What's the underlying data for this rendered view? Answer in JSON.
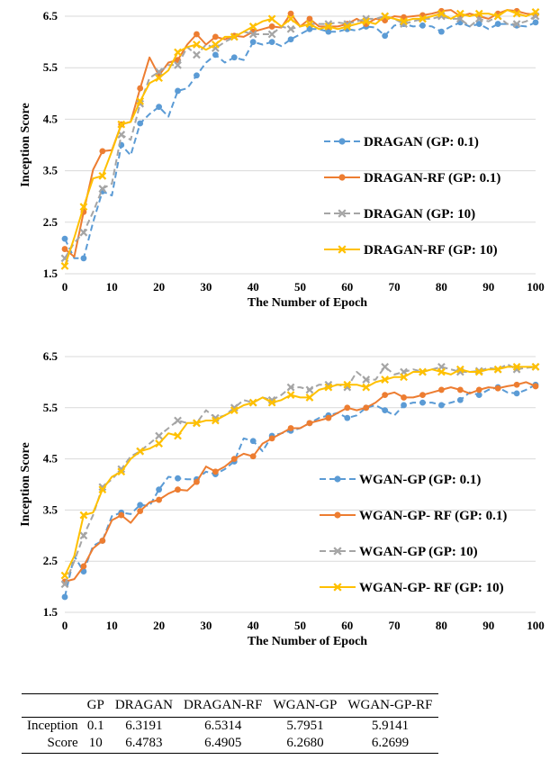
{
  "colors": {
    "blue": "#5b9bd5",
    "orange": "#ed7d31",
    "gray": "#a5a5a5",
    "yellow": "#ffc000",
    "grid": "#d9d9d9"
  },
  "chart_data": [
    {
      "type": "line",
      "title": "",
      "xlabel": "The Number of Epoch",
      "ylabel": "Inception Score",
      "xlim": [
        0,
        100
      ],
      "ylim": [
        1.5,
        6.5
      ],
      "xticks": [
        0,
        10,
        20,
        30,
        40,
        50,
        60,
        70,
        80,
        90,
        100
      ],
      "yticks": [
        1.5,
        2.5,
        3.5,
        4.5,
        5.5,
        6.5
      ],
      "grid": "horizontal",
      "legend_position": "right-middle",
      "series": [
        {
          "name": "DRAGAN (GP: 0.1)",
          "color": "#5b9bd5",
          "dash": "dashed",
          "marker": "circle",
          "x": [
            0,
            2,
            4,
            6,
            8,
            10,
            12,
            14,
            16,
            18,
            20,
            22,
            24,
            26,
            28,
            30,
            32,
            34,
            36,
            38,
            40,
            42,
            44,
            46,
            48,
            50,
            52,
            54,
            56,
            58,
            60,
            62,
            64,
            66,
            68,
            70,
            72,
            74,
            76,
            78,
            80,
            82,
            84,
            86,
            88,
            90,
            92,
            94,
            96,
            98,
            100
          ],
          "y": [
            2.18,
            1.8,
            1.8,
            2.5,
            3.1,
            3.02,
            4.0,
            3.8,
            4.42,
            4.6,
            4.74,
            4.55,
            5.05,
            5.1,
            5.35,
            5.6,
            5.75,
            5.6,
            5.7,
            5.65,
            6.0,
            5.95,
            6.0,
            5.92,
            6.05,
            6.15,
            6.25,
            6.25,
            6.2,
            6.2,
            6.25,
            6.22,
            6.3,
            6.28,
            6.12,
            6.32,
            6.35,
            6.3,
            6.32,
            6.3,
            6.2,
            6.3,
            6.38,
            6.3,
            6.35,
            6.25,
            6.35,
            6.35,
            6.32,
            6.3,
            6.38
          ]
        },
        {
          "name": "DRAGAN-RF (GP: 0.1)",
          "color": "#ed7d31",
          "dash": "solid",
          "marker": "circle",
          "x": [
            0,
            2,
            4,
            6,
            8,
            10,
            12,
            14,
            16,
            18,
            20,
            22,
            24,
            26,
            28,
            30,
            32,
            34,
            36,
            38,
            40,
            42,
            44,
            46,
            48,
            50,
            52,
            54,
            56,
            58,
            60,
            62,
            64,
            66,
            68,
            70,
            72,
            74,
            76,
            78,
            80,
            82,
            84,
            86,
            88,
            90,
            92,
            94,
            96,
            98,
            100
          ],
          "y": [
            1.98,
            1.83,
            2.7,
            3.52,
            3.88,
            3.9,
            4.4,
            4.45,
            5.1,
            5.7,
            5.35,
            5.6,
            5.65,
            5.95,
            6.15,
            5.95,
            6.1,
            6.05,
            6.12,
            6.1,
            6.2,
            6.25,
            6.3,
            6.28,
            6.55,
            6.3,
            6.45,
            6.3,
            6.3,
            6.3,
            6.35,
            6.45,
            6.35,
            6.45,
            6.42,
            6.5,
            6.48,
            6.5,
            6.52,
            6.55,
            6.6,
            6.62,
            6.5,
            6.55,
            6.5,
            6.45,
            6.55,
            6.62,
            6.6,
            6.55,
            6.53
          ]
        },
        {
          "name": "DRAGAN (GP: 10)",
          "color": "#a5a5a5",
          "dash": "dashed",
          "marker": "cross",
          "x": [
            0,
            2,
            4,
            6,
            8,
            10,
            12,
            14,
            16,
            18,
            20,
            22,
            24,
            26,
            28,
            30,
            32,
            34,
            36,
            38,
            40,
            42,
            44,
            46,
            48,
            50,
            52,
            54,
            56,
            58,
            60,
            62,
            64,
            66,
            68,
            70,
            72,
            74,
            76,
            78,
            80,
            82,
            84,
            86,
            88,
            90,
            92,
            94,
            96,
            98,
            100
          ],
          "y": [
            1.8,
            2.1,
            2.3,
            2.7,
            3.15,
            3.25,
            4.2,
            4.1,
            4.8,
            5.3,
            5.42,
            5.55,
            5.55,
            5.9,
            5.75,
            5.95,
            5.88,
            6.0,
            6.1,
            6.2,
            6.15,
            6.15,
            6.15,
            6.3,
            6.25,
            6.3,
            6.35,
            6.35,
            6.35,
            6.38,
            6.35,
            6.4,
            6.45,
            6.45,
            6.5,
            6.45,
            6.35,
            6.4,
            6.45,
            6.45,
            6.5,
            6.45,
            6.45,
            6.3,
            6.45,
            6.4,
            6.5,
            6.35,
            6.35,
            6.4,
            6.5
          ]
        },
        {
          "name": "DRAGAN-RF (GP: 10)",
          "color": "#ffc000",
          "dash": "solid",
          "marker": "cross",
          "x": [
            0,
            2,
            4,
            6,
            8,
            10,
            12,
            14,
            16,
            18,
            20,
            22,
            24,
            26,
            28,
            30,
            32,
            34,
            36,
            38,
            40,
            42,
            44,
            46,
            48,
            50,
            52,
            54,
            56,
            58,
            60,
            62,
            64,
            66,
            68,
            70,
            72,
            74,
            76,
            78,
            80,
            82,
            84,
            86,
            88,
            90,
            92,
            94,
            96,
            98,
            100
          ],
          "y": [
            1.65,
            2.2,
            2.8,
            3.35,
            3.4,
            3.88,
            4.4,
            4.45,
            4.85,
            5.2,
            5.3,
            5.45,
            5.8,
            5.9,
            5.95,
            5.85,
            5.95,
            6.1,
            6.1,
            6.2,
            6.3,
            6.4,
            6.45,
            6.3,
            6.45,
            6.3,
            6.35,
            6.25,
            6.3,
            6.25,
            6.3,
            6.35,
            6.4,
            6.35,
            6.5,
            6.45,
            6.4,
            6.45,
            6.45,
            6.5,
            6.55,
            6.45,
            6.55,
            6.5,
            6.55,
            6.55,
            6.5,
            6.62,
            6.55,
            6.5,
            6.58
          ]
        }
      ]
    },
    {
      "type": "line",
      "title": "",
      "xlabel": "The Number of Epoch",
      "ylabel": "Inception Score",
      "xlim": [
        0,
        100
      ],
      "ylim": [
        1.5,
        6.5
      ],
      "xticks": [
        0,
        10,
        20,
        30,
        40,
        50,
        60,
        70,
        80,
        90,
        100
      ],
      "yticks": [
        1.5,
        2.5,
        3.5,
        4.5,
        5.5,
        6.5
      ],
      "grid": "horizontal",
      "legend_position": "right-middle",
      "series": [
        {
          "name": "WGAN-GP (GP: 0.1)",
          "color": "#5b9bd5",
          "dash": "dashed",
          "marker": "circle",
          "x": [
            0,
            2,
            4,
            6,
            8,
            10,
            12,
            14,
            16,
            18,
            20,
            22,
            24,
            26,
            28,
            30,
            32,
            34,
            36,
            38,
            40,
            42,
            44,
            46,
            48,
            50,
            52,
            54,
            56,
            58,
            60,
            62,
            64,
            66,
            68,
            70,
            72,
            74,
            76,
            78,
            80,
            82,
            84,
            86,
            88,
            90,
            92,
            94,
            96,
            98,
            100
          ],
          "y": [
            1.8,
            2.6,
            2.3,
            2.8,
            2.9,
            3.38,
            3.45,
            3.42,
            3.6,
            3.58,
            3.9,
            4.15,
            4.12,
            4.1,
            4.1,
            4.25,
            4.2,
            4.3,
            4.45,
            4.9,
            4.85,
            4.65,
            4.95,
            5.0,
            5.05,
            5.1,
            5.2,
            5.3,
            5.35,
            5.4,
            5.3,
            5.35,
            5.5,
            5.55,
            5.45,
            5.35,
            5.55,
            5.6,
            5.6,
            5.6,
            5.55,
            5.6,
            5.65,
            5.8,
            5.75,
            5.85,
            5.9,
            5.8,
            5.78,
            5.85,
            5.95
          ]
        },
        {
          "name": "WGAN-GP- RF (GP: 0.1)",
          "color": "#ed7d31",
          "dash": "solid",
          "marker": "circle",
          "x": [
            0,
            2,
            4,
            6,
            8,
            10,
            12,
            14,
            16,
            18,
            20,
            22,
            24,
            26,
            28,
            30,
            32,
            34,
            36,
            38,
            40,
            42,
            44,
            46,
            48,
            50,
            52,
            54,
            56,
            58,
            60,
            62,
            64,
            66,
            68,
            70,
            72,
            74,
            76,
            78,
            80,
            82,
            84,
            86,
            88,
            90,
            92,
            94,
            96,
            98,
            100
          ],
          "y": [
            2.1,
            2.15,
            2.4,
            2.75,
            2.9,
            3.3,
            3.4,
            3.25,
            3.48,
            3.65,
            3.7,
            3.82,
            3.9,
            3.88,
            4.05,
            4.35,
            4.25,
            4.35,
            4.5,
            4.6,
            4.55,
            4.8,
            4.9,
            5.0,
            5.1,
            5.1,
            5.2,
            5.25,
            5.3,
            5.4,
            5.5,
            5.45,
            5.5,
            5.6,
            5.75,
            5.8,
            5.7,
            5.7,
            5.75,
            5.8,
            5.85,
            5.9,
            5.85,
            5.78,
            5.85,
            5.9,
            5.88,
            5.92,
            5.95,
            6.0,
            5.92
          ]
        },
        {
          "name": "WGAN-GP (GP: 10)",
          "color": "#a5a5a5",
          "dash": "dashed",
          "marker": "cross",
          "x": [
            0,
            2,
            4,
            6,
            8,
            10,
            12,
            14,
            16,
            18,
            20,
            22,
            24,
            26,
            28,
            30,
            32,
            34,
            36,
            38,
            40,
            42,
            44,
            46,
            48,
            50,
            52,
            54,
            56,
            58,
            60,
            62,
            64,
            66,
            68,
            70,
            72,
            74,
            76,
            78,
            80,
            82,
            84,
            86,
            88,
            90,
            92,
            94,
            96,
            98,
            100
          ],
          "y": [
            2.05,
            2.5,
            3.0,
            3.4,
            3.95,
            4.1,
            4.3,
            4.55,
            4.65,
            4.8,
            4.95,
            5.1,
            5.25,
            5.2,
            5.2,
            5.45,
            5.3,
            5.35,
            5.5,
            5.65,
            5.6,
            5.7,
            5.65,
            5.75,
            5.9,
            5.9,
            5.85,
            5.95,
            5.95,
            5.95,
            5.9,
            6.2,
            6.05,
            6.05,
            6.3,
            6.15,
            6.2,
            6.25,
            6.2,
            6.25,
            6.3,
            6.25,
            6.2,
            6.2,
            6.22,
            6.28,
            6.25,
            6.35,
            6.25,
            6.28,
            6.3
          ]
        },
        {
          "name": "WGAN-GP- RF (GP: 10)",
          "color": "#ffc000",
          "dash": "solid",
          "marker": "cross",
          "x": [
            0,
            2,
            4,
            6,
            8,
            10,
            12,
            14,
            16,
            18,
            20,
            22,
            24,
            26,
            28,
            30,
            32,
            34,
            36,
            38,
            40,
            42,
            44,
            46,
            48,
            50,
            52,
            54,
            56,
            58,
            60,
            62,
            64,
            66,
            68,
            70,
            72,
            74,
            76,
            78,
            80,
            82,
            84,
            86,
            88,
            90,
            92,
            94,
            96,
            98,
            100
          ],
          "y": [
            2.22,
            2.6,
            3.4,
            3.45,
            3.9,
            4.15,
            4.25,
            4.5,
            4.65,
            4.7,
            4.8,
            5.0,
            4.95,
            5.2,
            5.2,
            5.25,
            5.25,
            5.35,
            5.45,
            5.55,
            5.6,
            5.7,
            5.6,
            5.65,
            5.75,
            5.7,
            5.7,
            5.85,
            5.9,
            5.95,
            5.95,
            5.95,
            5.9,
            6.0,
            6.05,
            6.1,
            6.1,
            6.2,
            6.2,
            6.25,
            6.2,
            6.15,
            6.25,
            6.2,
            6.2,
            6.25,
            6.25,
            6.3,
            6.3,
            6.3,
            6.3
          ]
        }
      ]
    },
    {
      "type": "table",
      "columns": [
        "",
        "GP",
        "DRAGAN",
        "DRAGAN-RF",
        "WGAN-GP",
        "WGAN-GP-RF"
      ],
      "rows": [
        [
          "Inception",
          "0.1",
          "6.3191",
          "6.5314",
          "5.7951",
          "5.9141"
        ],
        [
          "Score",
          "10",
          "6.4783",
          "6.4905",
          "6.2680",
          "6.2699"
        ]
      ]
    }
  ]
}
